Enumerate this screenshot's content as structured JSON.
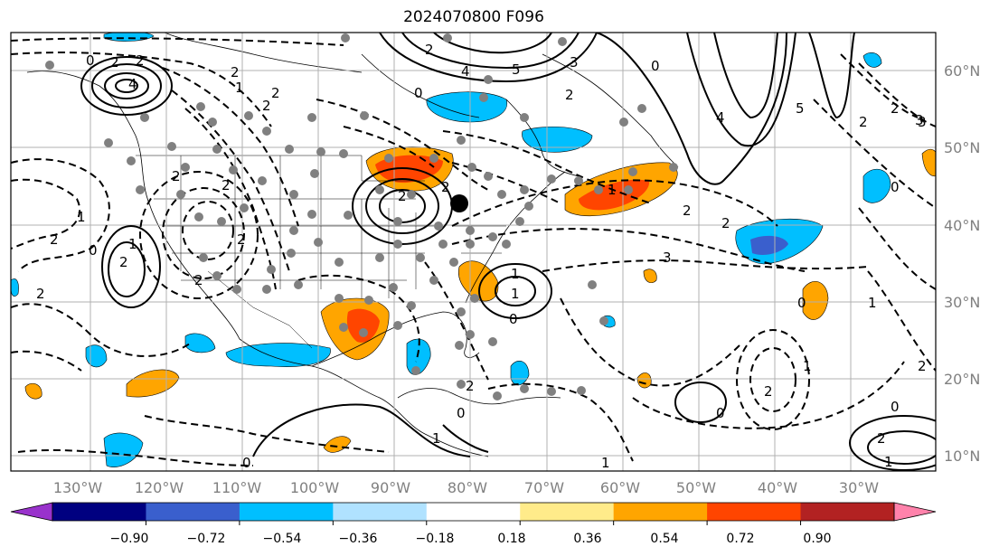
{
  "title": "2024070800 F096",
  "lon_labels": [
    "130°W",
    "120°W",
    "110°W",
    "100°W",
    "90°W",
    "80°W",
    "70°W",
    "60°W",
    "50°W",
    "40°W",
    "30°W"
  ],
  "lat_labels": [
    "60°N",
    "50°N",
    "40°N",
    "30°N",
    "20°N",
    "10°N"
  ],
  "colorbar": {
    "ticks": [
      "−0.90",
      "−0.72",
      "−0.54",
      "−0.36",
      "−0.18",
      "0.18",
      "0.36",
      "0.54",
      "0.72",
      "0.90"
    ],
    "colors": [
      "#9932cc",
      "#000080",
      "#3a5fcd",
      "#00bfff",
      "#b0e2ff",
      "#ffffff",
      "#ffeb8a",
      "#ffa500",
      "#ff4500",
      "#b22222",
      "#ff82ab"
    ]
  },
  "contour_labels": [
    "0",
    "2",
    "2",
    "4",
    "2",
    "2",
    "0",
    "2",
    "4",
    "5",
    "3",
    "2",
    "0",
    "2",
    "2",
    "2",
    "2",
    "4",
    "5",
    "3",
    "2",
    "0",
    "1",
    "2",
    "2",
    "2",
    "1",
    "2",
    "2",
    "1",
    "0",
    "1",
    "3",
    "1",
    "0",
    "2",
    "1",
    "2",
    "3",
    "2",
    "1",
    "0",
    "1",
    "2",
    "2",
    "0",
    "2",
    "1",
    "0",
    "1",
    "2",
    "0",
    "0",
    "2",
    "1"
  ]
}
